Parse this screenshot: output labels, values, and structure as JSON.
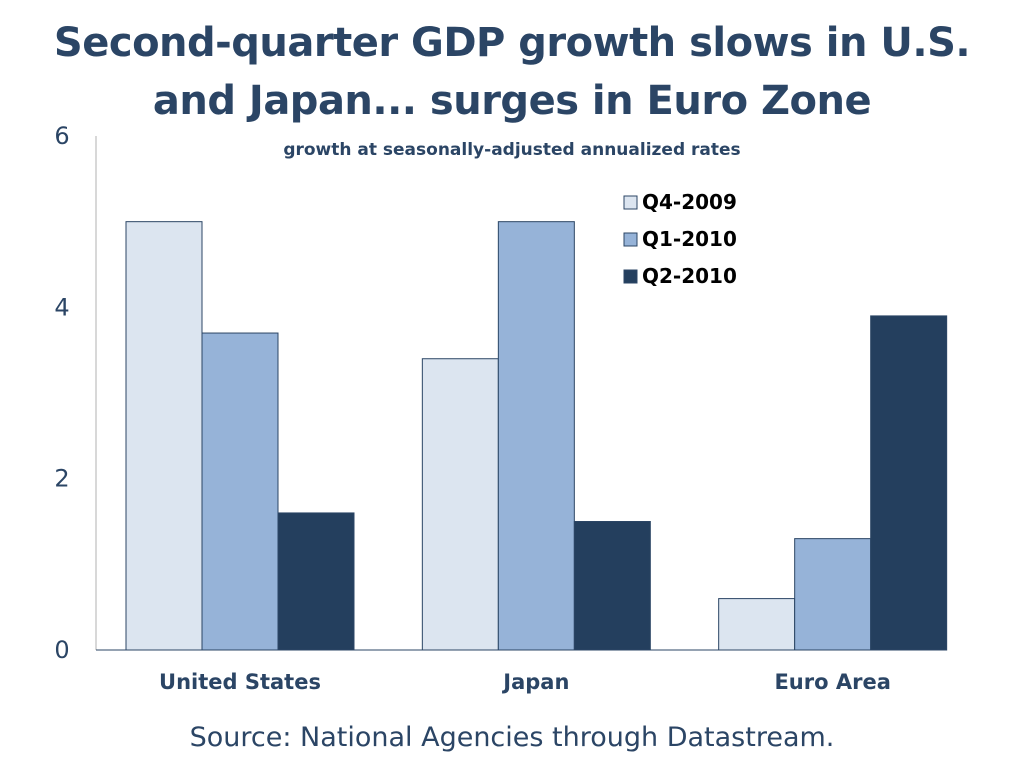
{
  "chart_data": {
    "type": "bar",
    "title_line_1": "Second-quarter GDP growth slows in U.S.",
    "title_line_2": "and Japan... surges in Euro Zone",
    "subtitle": "growth at seasonally-adjusted annualized rates",
    "xlabel": "",
    "ylabel": "",
    "ylim": [
      0,
      6
    ],
    "yticks": [
      0,
      2,
      4,
      6
    ],
    "grid": false,
    "legend_position": "top-right",
    "categories": [
      "United States",
      "Japan",
      "Euro Area"
    ],
    "series": [
      {
        "name": "Q4-2009",
        "color": "#dce5f0",
        "values": [
          5.0,
          3.4,
          0.6
        ]
      },
      {
        "name": "Q1-2010",
        "color": "#96b3d8",
        "values": [
          3.7,
          5.0,
          1.3
        ]
      },
      {
        "name": "Q2-2010",
        "color": "#243f5e",
        "values": [
          1.6,
          1.5,
          3.9
        ]
      }
    ],
    "source": "Source:  National Agencies through Datastream."
  }
}
